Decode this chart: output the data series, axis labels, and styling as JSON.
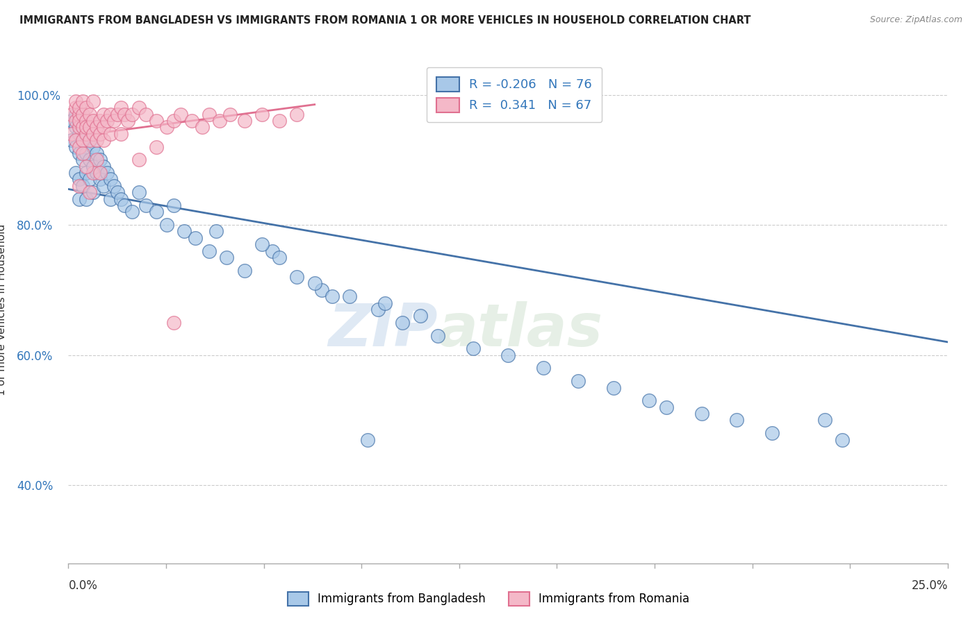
{
  "title": "IMMIGRANTS FROM BANGLADESH VS IMMIGRANTS FROM ROMANIA 1 OR MORE VEHICLES IN HOUSEHOLD CORRELATION CHART",
  "source": "Source: ZipAtlas.com",
  "ylabel": "1 or more Vehicles in Household",
  "R_bangladesh": -0.206,
  "N_bangladesh": 76,
  "R_romania": 0.341,
  "N_romania": 67,
  "color_bangladesh": "#a8c8e8",
  "color_romania": "#f4b8c8",
  "color_bangladesh_line": "#4472a8",
  "color_romania_line": "#e07090",
  "watermark_zip": "ZIP",
  "watermark_atlas": "atlas",
  "xlim": [
    0.0,
    0.25
  ],
  "ylim": [
    0.28,
    1.06
  ],
  "ytick_vals": [
    0.4,
    0.6,
    0.8,
    1.0
  ],
  "ytick_labels": [
    "40.0%",
    "60.0%",
    "80.0%",
    "100.0%"
  ],
  "bang_line_x": [
    0.0,
    0.25
  ],
  "bang_line_y": [
    0.855,
    0.62
  ],
  "rom_line_x": [
    0.0,
    0.07
  ],
  "rom_line_y": [
    0.935,
    0.985
  ],
  "bang_x": [
    0.001,
    0.001,
    0.002,
    0.002,
    0.002,
    0.002,
    0.003,
    0.003,
    0.003,
    0.003,
    0.003,
    0.004,
    0.004,
    0.004,
    0.004,
    0.005,
    0.005,
    0.005,
    0.005,
    0.006,
    0.006,
    0.006,
    0.007,
    0.007,
    0.007,
    0.008,
    0.008,
    0.009,
    0.009,
    0.01,
    0.01,
    0.011,
    0.012,
    0.012,
    0.013,
    0.014,
    0.015,
    0.016,
    0.018,
    0.02,
    0.022,
    0.025,
    0.028,
    0.03,
    0.033,
    0.036,
    0.04,
    0.045,
    0.05,
    0.058,
    0.065,
    0.072,
    0.08,
    0.088,
    0.095,
    0.105,
    0.115,
    0.125,
    0.135,
    0.145,
    0.155,
    0.165,
    0.09,
    0.1,
    0.17,
    0.18,
    0.19,
    0.2,
    0.215,
    0.22,
    0.085,
    0.042,
    0.055,
    0.06,
    0.07,
    0.075
  ],
  "bang_y": [
    0.96,
    0.93,
    0.97,
    0.95,
    0.92,
    0.88,
    0.96,
    0.94,
    0.91,
    0.87,
    0.84,
    0.95,
    0.93,
    0.9,
    0.86,
    0.94,
    0.91,
    0.88,
    0.84,
    0.93,
    0.9,
    0.87,
    0.92,
    0.89,
    0.85,
    0.91,
    0.88,
    0.9,
    0.87,
    0.89,
    0.86,
    0.88,
    0.87,
    0.84,
    0.86,
    0.85,
    0.84,
    0.83,
    0.82,
    0.85,
    0.83,
    0.82,
    0.8,
    0.83,
    0.79,
    0.78,
    0.76,
    0.75,
    0.73,
    0.76,
    0.72,
    0.7,
    0.69,
    0.67,
    0.65,
    0.63,
    0.61,
    0.6,
    0.58,
    0.56,
    0.55,
    0.53,
    0.68,
    0.66,
    0.52,
    0.51,
    0.5,
    0.48,
    0.5,
    0.47,
    0.47,
    0.79,
    0.77,
    0.75,
    0.71,
    0.69
  ],
  "rom_x": [
    0.001,
    0.001,
    0.002,
    0.002,
    0.002,
    0.002,
    0.003,
    0.003,
    0.003,
    0.003,
    0.003,
    0.004,
    0.004,
    0.004,
    0.004,
    0.005,
    0.005,
    0.005,
    0.005,
    0.006,
    0.006,
    0.006,
    0.007,
    0.007,
    0.007,
    0.008,
    0.008,
    0.009,
    0.009,
    0.01,
    0.01,
    0.011,
    0.012,
    0.013,
    0.014,
    0.015,
    0.016,
    0.017,
    0.018,
    0.02,
    0.022,
    0.025,
    0.028,
    0.03,
    0.032,
    0.035,
    0.038,
    0.04,
    0.043,
    0.046,
    0.05,
    0.055,
    0.06,
    0.065,
    0.02,
    0.025,
    0.01,
    0.012,
    0.007,
    0.008,
    0.004,
    0.005,
    0.003,
    0.006,
    0.009,
    0.015,
    0.03
  ],
  "rom_y": [
    0.97,
    0.94,
    0.98,
    0.96,
    0.93,
    0.99,
    0.97,
    0.95,
    0.92,
    0.98,
    0.96,
    0.97,
    0.95,
    0.93,
    0.99,
    0.96,
    0.94,
    0.98,
    0.95,
    0.97,
    0.95,
    0.93,
    0.96,
    0.94,
    0.99,
    0.95,
    0.93,
    0.96,
    0.94,
    0.97,
    0.95,
    0.96,
    0.97,
    0.96,
    0.97,
    0.98,
    0.97,
    0.96,
    0.97,
    0.98,
    0.97,
    0.96,
    0.95,
    0.96,
    0.97,
    0.96,
    0.95,
    0.97,
    0.96,
    0.97,
    0.96,
    0.97,
    0.96,
    0.97,
    0.9,
    0.92,
    0.93,
    0.94,
    0.88,
    0.9,
    0.91,
    0.89,
    0.86,
    0.85,
    0.88,
    0.94,
    0.65
  ]
}
